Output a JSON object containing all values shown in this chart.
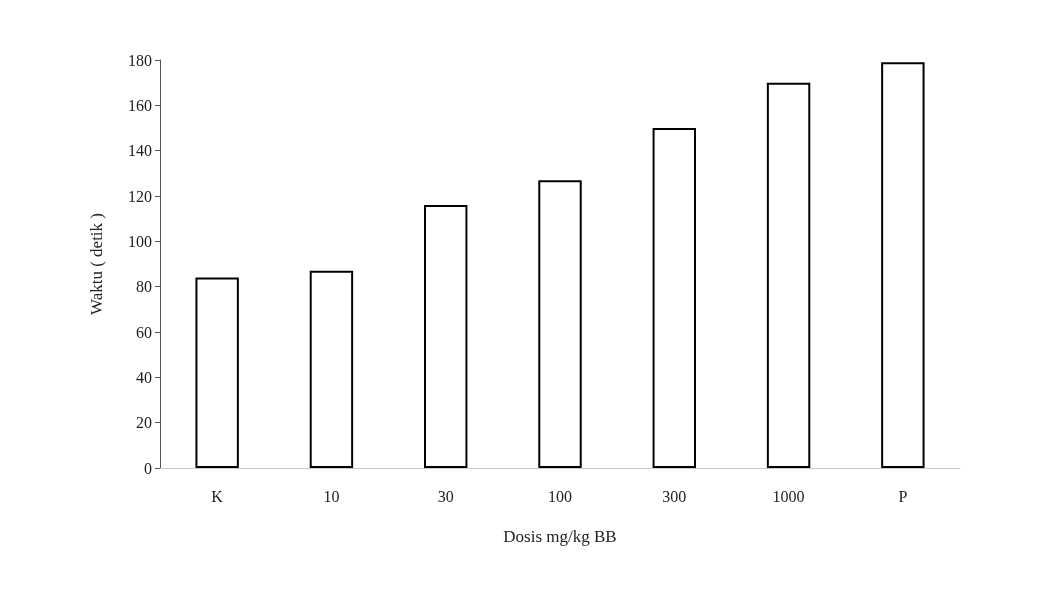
{
  "chart_data": {
    "type": "bar",
    "xlabel": "Dosis mg/kg BB",
    "ylabel": "Waktu ( detik )",
    "categories": [
      "K",
      "10",
      "30",
      "100",
      "300",
      "1000",
      "P"
    ],
    "values": [
      84,
      87,
      116,
      127,
      150,
      170,
      179
    ],
    "color": "#ffffff",
    "ylim": [
      0,
      180
    ],
    "yticks": [
      0,
      20,
      40,
      60,
      80,
      100,
      120,
      140,
      160,
      180
    ],
    "grid": false
  }
}
